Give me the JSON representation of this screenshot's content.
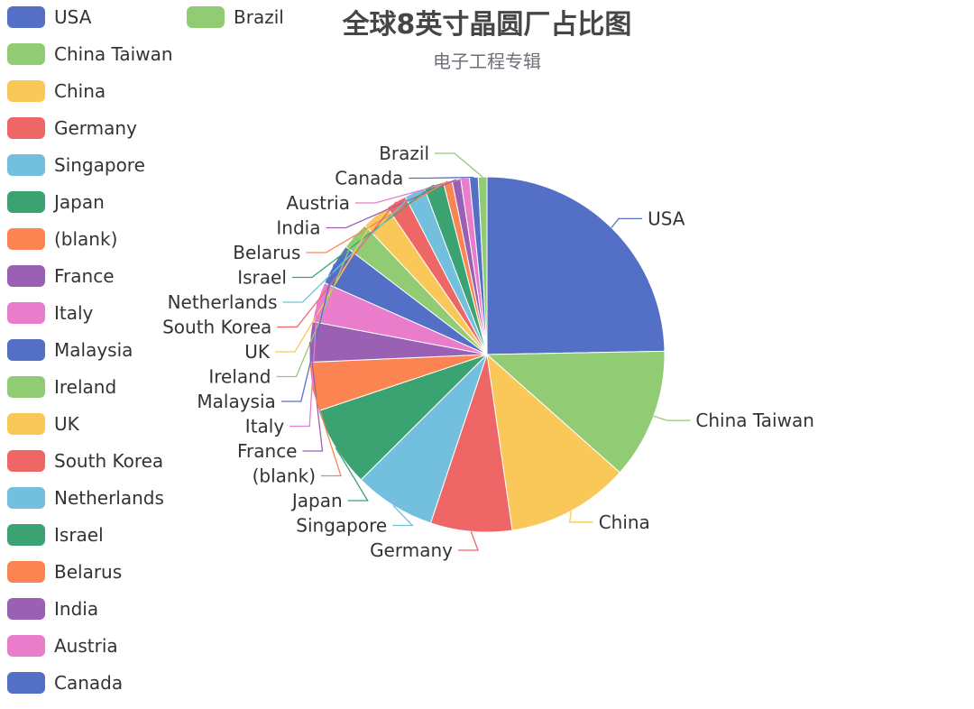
{
  "chart_data": {
    "type": "pie",
    "title": "全球8英寸晶圆厂占比图",
    "subtitle": "电子工程专辑",
    "legend_position": "left",
    "slices": [
      {
        "name": "USA",
        "value": 25.0,
        "color": "#5470c6"
      },
      {
        "name": "China Taiwan",
        "value": 12.0,
        "color": "#91cc75"
      },
      {
        "name": "China",
        "value": 11.3,
        "color": "#fac858"
      },
      {
        "name": "Germany",
        "value": 7.5,
        "color": "#ee6666"
      },
      {
        "name": "Singapore",
        "value": 7.5,
        "color": "#73c0de"
      },
      {
        "name": "Japan",
        "value": 7.4,
        "color": "#3ba272"
      },
      {
        "name": "(blank)",
        "value": 4.5,
        "color": "#fc8452"
      },
      {
        "name": "France",
        "value": 3.7,
        "color": "#9a60b4"
      },
      {
        "name": "Italy",
        "value": 3.7,
        "color": "#ea7ccc"
      },
      {
        "name": "Malaysia",
        "value": 3.8,
        "color": "#5470c6"
      },
      {
        "name": "Ireland",
        "value": 2.6,
        "color": "#91cc75"
      },
      {
        "name": "UK",
        "value": 2.6,
        "color": "#fac858"
      },
      {
        "name": "South Korea",
        "value": 1.9,
        "color": "#ee6666"
      },
      {
        "name": "Netherlands",
        "value": 1.9,
        "color": "#73c0de"
      },
      {
        "name": "Israel",
        "value": 1.8,
        "color": "#3ba272"
      },
      {
        "name": "Belarus",
        "value": 0.8,
        "color": "#fc8452"
      },
      {
        "name": "India",
        "value": 0.8,
        "color": "#9a60b4"
      },
      {
        "name": "Austria",
        "value": 0.8,
        "color": "#ea7ccc"
      },
      {
        "name": "Canada",
        "value": 0.8,
        "color": "#5470c6"
      },
      {
        "name": "Brazil",
        "value": 0.8,
        "color": "#91cc75"
      }
    ]
  }
}
